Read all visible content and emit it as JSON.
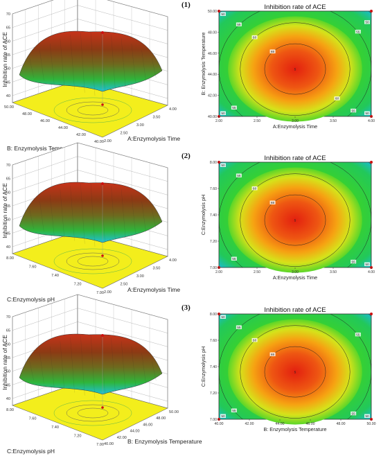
{
  "chart_data": [
    {
      "panel": "(1)",
      "surface": {
        "type": "surface3d",
        "z_label": "Inhibition rate of ACE",
        "x_label": "A:Enzymolysis Time",
        "y_label": "B: Enzymolysis Temperature",
        "z_ticks": [
          "40",
          "45",
          "50",
          "55",
          "60",
          "65",
          "70"
        ],
        "x_ticks": [
          "2.00",
          "2.50",
          "3.00",
          "3.50",
          "4.00"
        ],
        "y_ticks": [
          "40.00",
          "42.00",
          "44.00",
          "46.00",
          "48.00",
          "50.00"
        ]
      },
      "contour": {
        "type": "contour",
        "title": "Inhibition rate of ACE",
        "x_label": "A:Enzymolysis Time",
        "y_label": "B: Enzymolysis Temperature",
        "x_ticks": [
          "2.00",
          "2.50",
          "3.00",
          "3.50",
          "4.00"
        ],
        "y_ticks": [
          "40.00",
          "42.00",
          "44.00",
          "46.00",
          "48.00",
          "50.00"
        ],
        "xlim": [
          2.0,
          4.0
        ],
        "ylim": [
          40.0,
          50.0
        ],
        "center": [
          3.0,
          44.5
        ],
        "levels": [
          {
            "value": 50,
            "labels": [
              "50",
              "50",
              "50",
              "50"
            ]
          },
          {
            "value": 55,
            "labels": [
              "55",
              "55",
              "55",
              "55"
            ]
          },
          {
            "value": 60,
            "labels": [
              "60",
              "60"
            ]
          },
          {
            "value": 65,
            "labels": [
              "65"
            ]
          }
        ],
        "center_label": "5"
      }
    },
    {
      "panel": "(2)",
      "surface": {
        "type": "surface3d",
        "z_label": "Inhibition rate of ACE",
        "x_label": "A:Enzymolysis Time",
        "y_label": "C:Enzymolysis pH",
        "z_ticks": [
          "40",
          "45",
          "50",
          "55",
          "60",
          "65",
          "70"
        ],
        "x_ticks": [
          "2.00",
          "2.50",
          "3.00",
          "3.50",
          "4.00"
        ],
        "y_ticks": [
          "7.00",
          "7.20",
          "7.40",
          "7.60",
          "8.00"
        ]
      },
      "contour": {
        "type": "contour",
        "title": "Inhibition rate of ACE",
        "x_label": "A:Enzymolysis Time",
        "y_label": "C:Enzymolysis pH",
        "x_ticks": [
          "2.00",
          "2.50",
          "3.00",
          "3.50",
          "4.00"
        ],
        "y_ticks": [
          "7.00",
          "7.20",
          "7.40",
          "7.60",
          "8.00"
        ],
        "xlim": [
          2.0,
          4.0
        ],
        "ylim": [
          7.0,
          8.0
        ],
        "center": [
          3.0,
          7.45
        ],
        "levels": [
          {
            "value": 50,
            "labels": [
              "50",
              "50"
            ]
          },
          {
            "value": 55,
            "labels": [
              "55",
              "55",
              "55"
            ]
          },
          {
            "value": 60,
            "labels": [
              "60"
            ]
          },
          {
            "value": 65,
            "labels": [
              "65"
            ]
          }
        ],
        "center_label": "5"
      }
    },
    {
      "panel": "(3)",
      "surface": {
        "type": "surface3d",
        "z_label": "Inhibition rate of ACE",
        "x_label": "B: Enzymolysis Temperature",
        "y_label": "C:Enzymolysis pH",
        "z_ticks": [
          "40",
          "45",
          "50",
          "55",
          "60",
          "65",
          "70"
        ],
        "x_ticks": [
          "40.00",
          "42.00",
          "44.00",
          "46.00",
          "48.00",
          "50.00"
        ],
        "y_ticks": [
          "7.00",
          "7.20",
          "7.40",
          "7.60",
          "8.00"
        ]
      },
      "contour": {
        "type": "contour",
        "title": "Inhibition rate of ACE",
        "x_label": "B: Enzymolysis Temperature",
        "y_label": "C:Enzymolysis pH",
        "x_ticks": [
          "40.00",
          "42.00",
          "44.00",
          "46.00",
          "48.00",
          "50.00"
        ],
        "y_ticks": [
          "7.00",
          "7.20",
          "7.40",
          "7.60",
          "8.00"
        ],
        "xlim": [
          40.0,
          50.0
        ],
        "ylim": [
          7.0,
          8.0
        ],
        "center": [
          45.0,
          7.45
        ],
        "levels": [
          {
            "value": 50,
            "labels": [
              "50",
              "50",
              "50"
            ]
          },
          {
            "value": 55,
            "labels": [
              "55",
              "55",
              "55",
              "55"
            ]
          },
          {
            "value": 60,
            "labels": [
              "60"
            ]
          },
          {
            "value": 65,
            "labels": [
              "65"
            ]
          }
        ],
        "center_label": "5"
      }
    }
  ],
  "colors": {
    "floor": "#f3ee1c",
    "contour_hot": "#e52b10",
    "contour_mid": "#f39a12",
    "contour_green": "#2fd12b",
    "contour_blue": "#18b4e6",
    "marker": "#cc1111"
  }
}
